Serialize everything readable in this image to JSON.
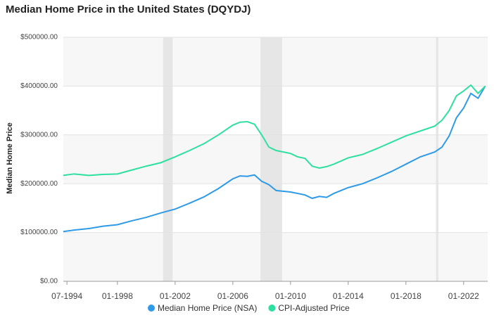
{
  "chart_data": {
    "type": "line",
    "title": "Median Home Price in the United States (DQYDJ)",
    "y_label": "Median Home Price",
    "x": [
      "04-1994",
      "01-1995",
      "01-1996",
      "01-1997",
      "01-1998",
      "01-1999",
      "01-2000",
      "01-2001",
      "01-2002",
      "01-2003",
      "01-2004",
      "01-2005",
      "01-2006",
      "07-2006",
      "01-2007",
      "07-2007",
      "01-2008",
      "07-2008",
      "01-2009",
      "01-2010",
      "07-2010",
      "01-2011",
      "07-2011",
      "01-2012",
      "07-2012",
      "01-2013",
      "01-2014",
      "01-2015",
      "01-2016",
      "01-2017",
      "01-2018",
      "01-2019",
      "01-2020",
      "07-2020",
      "01-2021",
      "07-2021",
      "01-2022",
      "07-2022",
      "01-2023",
      "07-2023"
    ],
    "xlim": [
      "04-1994",
      "09-2023"
    ],
    "xticks": [
      "07-1994",
      "01-1998",
      "01-2002",
      "01-2006",
      "01-2010",
      "01-2014",
      "01-2018",
      "01-2022"
    ],
    "shaded_periods": [
      [
        "03-2001",
        "11-2001"
      ],
      [
        "12-2007",
        "06-2009"
      ],
      [
        "02-2020",
        "04-2020"
      ]
    ],
    "ylim": [
      0,
      500000
    ],
    "yticks": [
      {
        "value": 0,
        "label": "$0.00"
      },
      {
        "value": 100000,
        "label": "$100000.00"
      },
      {
        "value": 200000,
        "label": "$200000.00"
      },
      {
        "value": 300000,
        "label": "$300000.00"
      },
      {
        "value": 400000,
        "label": "$400000.00"
      },
      {
        "value": 500000,
        "label": "$500000.00"
      }
    ],
    "series": [
      {
        "name": "Median Home Price (NSA)",
        "color": "#2f9ae8",
        "values": [
          102000,
          105000,
          108000,
          113000,
          116000,
          124000,
          131000,
          140000,
          148000,
          160000,
          173000,
          190000,
          210000,
          216000,
          215000,
          218000,
          205000,
          198000,
          186000,
          183000,
          180000,
          177000,
          170000,
          174000,
          172000,
          180000,
          192000,
          200000,
          212000,
          225000,
          240000,
          255000,
          265000,
          275000,
          298000,
          335000,
          355000,
          385000,
          375000,
          400000
        ]
      },
      {
        "name": "CPI-Adjusted Price",
        "color": "#2ee0a0",
        "values": [
          217000,
          220000,
          217000,
          219000,
          220000,
          228000,
          236000,
          243000,
          255000,
          268000,
          282000,
          300000,
          320000,
          326000,
          327000,
          322000,
          300000,
          275000,
          268000,
          262000,
          255000,
          252000,
          236000,
          232000,
          235000,
          240000,
          253000,
          260000,
          272000,
          285000,
          298000,
          308000,
          318000,
          330000,
          350000,
          380000,
          390000,
          402000,
          385000,
          400000
        ]
      }
    ]
  }
}
